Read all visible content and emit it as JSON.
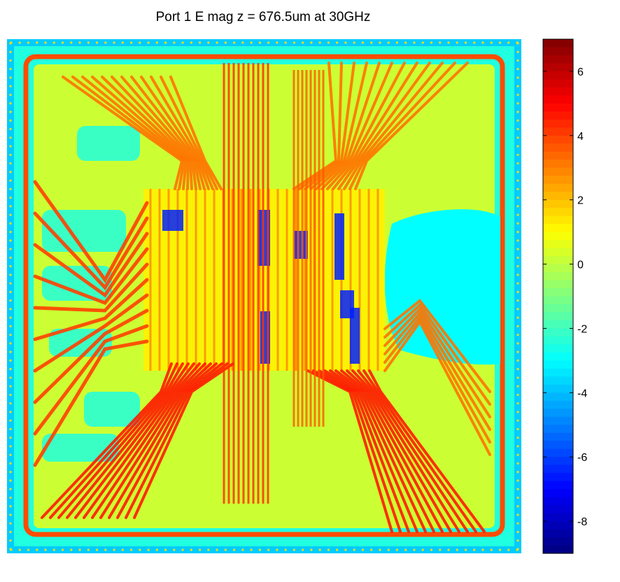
{
  "chart_data": {
    "type": "heatmap",
    "title": "Port 1 E mag z = 676.5um at 30GHz",
    "xlabel": "",
    "ylabel": "",
    "colormap": "jet",
    "colorbar": {
      "range": [
        -9,
        7
      ],
      "ticks": [
        6,
        4,
        2,
        0,
        -2,
        -4,
        -6,
        -8
      ],
      "tick_labels": [
        "6",
        "4",
        "2",
        "0",
        "-2",
        "-4",
        "-6",
        "-8"
      ]
    },
    "regions": [
      {
        "name": "background",
        "value": -2.5
      },
      {
        "name": "outer-edge",
        "value": -3.8
      },
      {
        "name": "ring-trace",
        "value": 3.8
      },
      {
        "name": "board-field",
        "value": 0.2
      },
      {
        "name": "left-fanout-traces",
        "value": 4.0
      },
      {
        "name": "top-fanout-traces",
        "value": 3.2
      },
      {
        "name": "bottom-fanout-traces",
        "value": 4.6
      },
      {
        "name": "core-grid",
        "value": 1.2
      },
      {
        "name": "core-low-pockets",
        "value": -6.5
      },
      {
        "name": "right-low-region",
        "value": -3.0
      }
    ]
  }
}
